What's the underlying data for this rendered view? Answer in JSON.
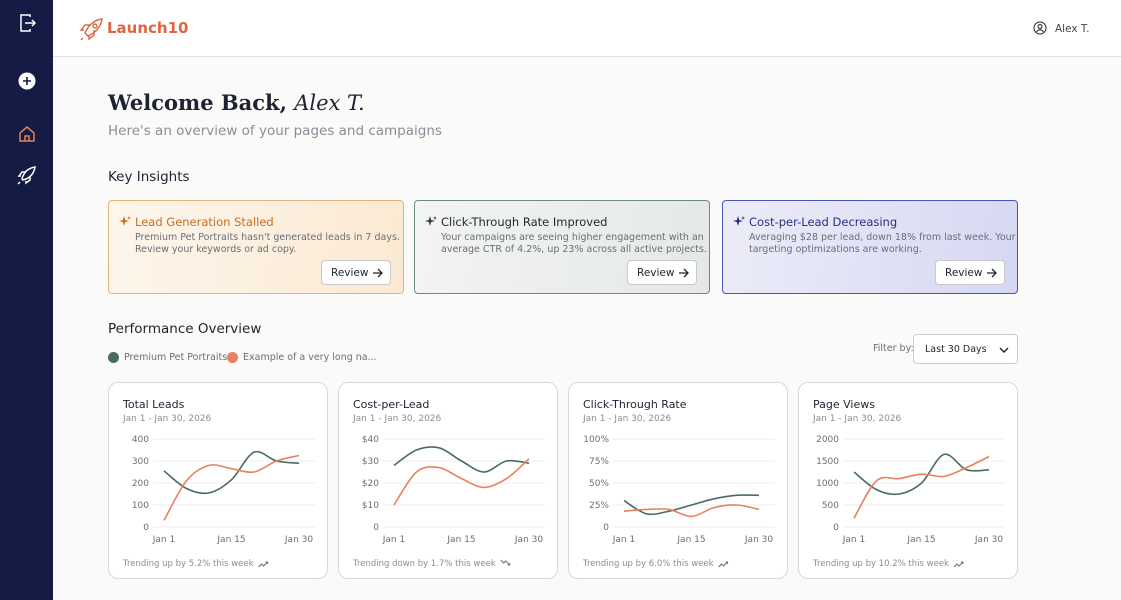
{
  "header": {
    "brand": "Launch10",
    "user": "Alex T."
  },
  "welcome": {
    "greeting": "Welcome Back,",
    "name": "Alex T.",
    "subtitle": "Here's an overview of your pages and campaigns"
  },
  "insights": {
    "title": "Key Insights",
    "cards": [
      {
        "title": "Lead Generation Stalled",
        "body": [
          "Premium Pet Portraits hasn't generated leads in 7 days.",
          "Review your keywords or ad copy."
        ],
        "action": "Review"
      },
      {
        "title": "Click-Through Rate Improved",
        "body": [
          "Your campaigns are seeing higher engagement with an",
          "average CTR of 4.2%, up 23% across all active projects."
        ],
        "action": "Review"
      },
      {
        "title": "Cost-per-Lead Decreasing",
        "body": [
          "Averaging $28 per lead, down 18% from last week. Your",
          "targeting optimizations are working."
        ],
        "action": "Review"
      }
    ]
  },
  "performance": {
    "title": "Performance Overview",
    "filter_label": "Filter by:",
    "filter_value": "Last 30 Days"
  },
  "chart_data": [
    {
      "type": "line",
      "title": "Total Leads",
      "subtitle": "Jan 1 - Jan 30, 2026",
      "categories": [
        "Jan 1",
        null,
        null,
        "Jan 15",
        null,
        null,
        "Jan 30"
      ],
      "series": [
        {
          "name": "Premium Pet Portraits",
          "color": "#4a6b63",
          "values": [
            255,
            175,
            155,
            215,
            340,
            300,
            290
          ]
        },
        {
          "name": "Example of a very long na...",
          "color": "#e8805f",
          "values": [
            30,
            210,
            280,
            265,
            250,
            300,
            325
          ]
        }
      ],
      "ylim": [
        0,
        400
      ],
      "yticks": [
        0,
        100,
        200,
        300,
        400
      ],
      "grid": true,
      "footer": "Trending up by 5.2% this week"
    },
    {
      "type": "line",
      "title": "Cost-per-Lead",
      "subtitle": "Jan 1 - Jan 30, 2026",
      "categories": [
        "Jan 1",
        null,
        null,
        "Jan 15",
        null,
        null,
        "Jan 30"
      ],
      "series": [
        {
          "color": "#4a6b63",
          "values": [
            28,
            35,
            36,
            30,
            25,
            30,
            29
          ]
        },
        {
          "color": "#e8805f",
          "values": [
            10,
            25,
            27,
            22,
            18,
            22,
            31
          ]
        }
      ],
      "ylim": [
        0,
        40
      ],
      "yticks": [
        0,
        {
          "value": 10,
          "label": "$10"
        },
        {
          "value": 20,
          "label": "$20"
        },
        {
          "value": 30,
          "label": "$30"
        },
        {
          "value": 40,
          "label": "$40"
        }
      ],
      "grid": true,
      "footer": "Trending down by 1.7% this week"
    },
    {
      "type": "line",
      "title": "Click-Through Rate",
      "subtitle": "Jan 1 - Jan 30, 2026",
      "categories": [
        "Jan 1",
        null,
        null,
        "Jan 15",
        null,
        null,
        "Jan 30"
      ],
      "series": [
        {
          "color": "#4a6b63",
          "values": [
            30,
            15,
            18,
            25,
            32,
            36,
            36
          ]
        },
        {
          "color": "#e8805f",
          "values": [
            18,
            20,
            20,
            12,
            22,
            25,
            20
          ]
        }
      ],
      "ylim": [
        0,
        100
      ],
      "yticks": [
        0,
        {
          "value": 25,
          "label": "25%"
        },
        {
          "value": 50,
          "label": "50%"
        },
        {
          "value": 75,
          "label": "75%"
        },
        {
          "value": 100,
          "label": "100%"
        }
      ],
      "grid": true,
      "footer": "Trending up by 6.0% this week"
    },
    {
      "type": "line",
      "title": "Page Views",
      "subtitle": "Jan 1 - Jan 30, 2026",
      "categories": [
        "Jan 1",
        null,
        null,
        "Jan 15",
        null,
        null,
        "Jan 30"
      ],
      "series": [
        {
          "color": "#4a6b63",
          "values": [
            1250,
            850,
            750,
            1000,
            1650,
            1300,
            1300
          ]
        },
        {
          "color": "#e8805f",
          "values": [
            200,
            1050,
            1100,
            1200,
            1150,
            1350,
            1600
          ]
        }
      ],
      "ylim": [
        0,
        2000
      ],
      "yticks": [
        0,
        500,
        1000,
        1500,
        2000
      ],
      "grid": true,
      "footer": "Trending up by 10.2% this week"
    }
  ]
}
